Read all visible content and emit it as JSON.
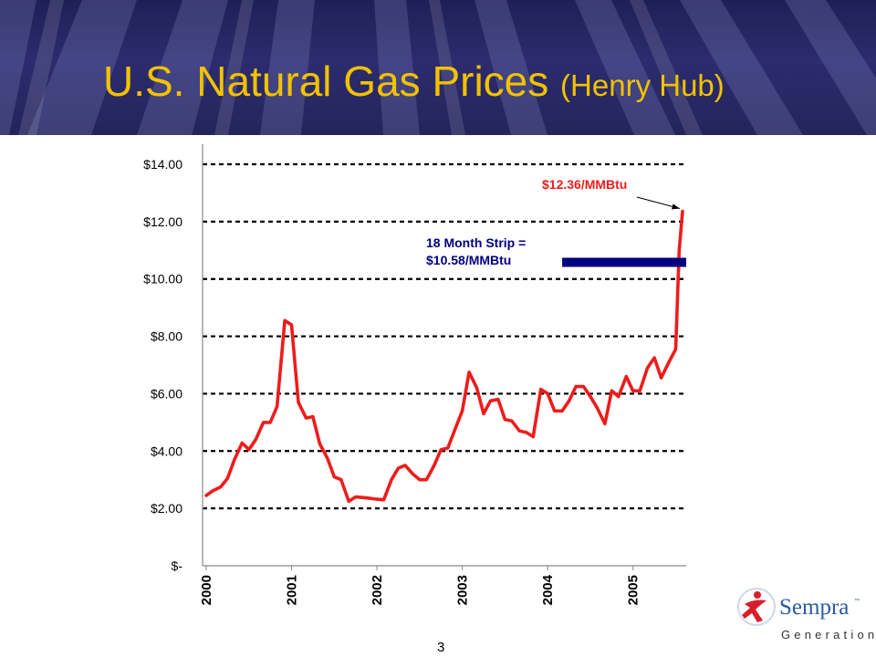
{
  "header": {
    "title": "U.S. Natural Gas Prices",
    "subtitle": "(Henry Hub)"
  },
  "page_number": "3",
  "logo": {
    "name": "Sempra",
    "tm": "™",
    "division": "Generation"
  },
  "colors": {
    "title": "#f2c200",
    "line": "#ee1c1c",
    "strip_bar": "#000080",
    "header_bg": "#2c2c6e"
  },
  "chart_data": {
    "type": "line",
    "title": "",
    "xlabel": "",
    "ylabel": "",
    "ylim": [
      0,
      14
    ],
    "grid": "horizontal-dashed",
    "y_ticks": [
      {
        "value": 14,
        "label": "$14.00"
      },
      {
        "value": 12,
        "label": "$12.00"
      },
      {
        "value": 10,
        "label": "$10.00"
      },
      {
        "value": 8,
        "label": "$8.00"
      },
      {
        "value": 6,
        "label": "$6.00"
      },
      {
        "value": 4,
        "label": "$4.00"
      },
      {
        "value": 2,
        "label": "$2.00"
      },
      {
        "value": 0,
        "label": "$-"
      }
    ],
    "x_ticks": [
      {
        "value": 2000,
        "label": "2000"
      },
      {
        "value": 2001,
        "label": "2001"
      },
      {
        "value": 2002,
        "label": "2002"
      },
      {
        "value": 2003,
        "label": "2003"
      },
      {
        "value": 2004,
        "label": "2004"
      },
      {
        "value": 2005,
        "label": "2005"
      }
    ],
    "xlim": [
      2000,
      2005.58
    ],
    "series": [
      {
        "points": [
          [
            2000.0,
            2.45
          ],
          [
            2000.08,
            2.62
          ],
          [
            2000.17,
            2.75
          ],
          [
            2000.25,
            3.05
          ],
          [
            2000.33,
            3.7
          ],
          [
            2000.42,
            4.28
          ],
          [
            2000.5,
            4.05
          ],
          [
            2000.58,
            4.4
          ],
          [
            2000.67,
            5.0
          ],
          [
            2000.75,
            5.0
          ],
          [
            2000.83,
            5.55
          ],
          [
            2000.92,
            8.55
          ],
          [
            2001.0,
            8.4
          ],
          [
            2001.08,
            5.7
          ],
          [
            2001.17,
            5.15
          ],
          [
            2001.25,
            5.2
          ],
          [
            2001.33,
            4.25
          ],
          [
            2001.42,
            3.75
          ],
          [
            2001.5,
            3.1
          ],
          [
            2001.58,
            3.0
          ],
          [
            2001.67,
            2.25
          ],
          [
            2001.75,
            2.4
          ],
          [
            2001.83,
            2.38
          ],
          [
            2001.92,
            2.35
          ],
          [
            2002.0,
            2.32
          ],
          [
            2002.08,
            2.3
          ],
          [
            2002.17,
            3.0
          ],
          [
            2002.25,
            3.4
          ],
          [
            2002.33,
            3.5
          ],
          [
            2002.42,
            3.2
          ],
          [
            2002.5,
            3.0
          ],
          [
            2002.58,
            3.0
          ],
          [
            2002.67,
            3.5
          ],
          [
            2002.75,
            4.05
          ],
          [
            2002.83,
            4.1
          ],
          [
            2002.92,
            4.8
          ],
          [
            2003.0,
            5.4
          ],
          [
            2003.08,
            6.75
          ],
          [
            2003.17,
            6.2
          ],
          [
            2003.25,
            5.3
          ],
          [
            2003.33,
            5.75
          ],
          [
            2003.42,
            5.8
          ],
          [
            2003.5,
            5.1
          ],
          [
            2003.58,
            5.05
          ],
          [
            2003.67,
            4.7
          ],
          [
            2003.75,
            4.65
          ],
          [
            2003.83,
            4.5
          ],
          [
            2003.92,
            6.15
          ],
          [
            2004.0,
            6.0
          ],
          [
            2004.08,
            5.4
          ],
          [
            2004.17,
            5.4
          ],
          [
            2004.25,
            5.75
          ],
          [
            2004.33,
            6.25
          ],
          [
            2004.42,
            6.25
          ],
          [
            2004.5,
            5.9
          ],
          [
            2004.58,
            5.5
          ],
          [
            2004.67,
            4.95
          ],
          [
            2004.75,
            6.1
          ],
          [
            2004.83,
            5.9
          ],
          [
            2004.92,
            6.6
          ],
          [
            2005.0,
            6.1
          ],
          [
            2005.08,
            6.1
          ],
          [
            2005.17,
            6.9
          ],
          [
            2005.25,
            7.25
          ],
          [
            2005.33,
            6.55
          ],
          [
            2005.42,
            7.1
          ],
          [
            2005.5,
            7.55
          ],
          [
            2005.54,
            11.0
          ],
          [
            2005.58,
            12.36
          ]
        ]
      }
    ],
    "annotations": [
      {
        "id": "spot",
        "text": "$12.36/MMBtu",
        "value": 12.36
      },
      {
        "id": "strip",
        "lines": [
          "18 Month Strip =",
          "$10.58/MMBtu"
        ],
        "value": 10.58,
        "x_range": [
          2004.17,
          2005.58
        ]
      }
    ]
  }
}
